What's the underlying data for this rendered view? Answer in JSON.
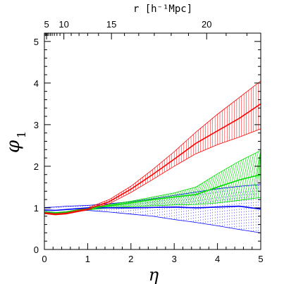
{
  "chart_data": {
    "type": "line",
    "xlabel": "η",
    "ylabel": "φ",
    "ylabel_subscript": "1",
    "top_axis_label": "r [h⁻¹Mpc]",
    "xlim": [
      0,
      5
    ],
    "ylim": [
      0,
      5.2
    ],
    "x_ticks": [
      0,
      1,
      2,
      3,
      4,
      5
    ],
    "y_ticks": [
      0,
      1,
      2,
      3,
      4,
      5
    ],
    "top_ticks": [
      {
        "label": "5",
        "eta": 0.05
      },
      {
        "label": "10",
        "eta": 0.45
      },
      {
        "label": "15",
        "eta": 1.55
      },
      {
        "label": "20",
        "eta": 3.75
      }
    ],
    "top_minor_ticks_eta": [
      0.02,
      0.04,
      0.07,
      0.1,
      0.14,
      0.18,
      0.23,
      0.29,
      0.36,
      0.62,
      0.8,
      1.0,
      1.25,
      1.85,
      2.18,
      2.54,
      2.93,
      3.33,
      4.2,
      4.68
    ],
    "grid": false,
    "legend": "none",
    "series": [
      {
        "color": "#0000ff",
        "x": [
          0,
          0.25,
          0.5,
          1,
          1.5,
          2,
          2.5,
          3,
          3.5,
          4,
          4.5,
          5
        ],
        "y": [
          0.95,
          0.94,
          0.96,
          1.0,
          1.0,
          1.0,
          1.01,
          1.02,
          1.0,
          1.02,
          1.04,
          0.97
        ],
        "upper": [
          1.01,
          1.02,
          1.04,
          1.06,
          1.1,
          1.15,
          1.22,
          1.3,
          1.38,
          1.46,
          1.52,
          1.56
        ],
        "lower": [
          0.9,
          0.88,
          0.9,
          0.94,
          0.9,
          0.85,
          0.8,
          0.72,
          0.65,
          0.57,
          0.48,
          0.4
        ],
        "hatch": "vertical-dotted"
      },
      {
        "color": "#00dd00",
        "x": [
          0,
          0.25,
          0.5,
          1,
          1.5,
          2,
          2.5,
          3,
          3.5,
          4,
          4.5,
          5
        ],
        "y": [
          0.89,
          0.86,
          0.88,
          0.98,
          1.05,
          1.12,
          1.2,
          1.26,
          1.32,
          1.5,
          1.67,
          1.8
        ],
        "upper": [
          0.92,
          0.89,
          0.91,
          1.0,
          1.08,
          1.16,
          1.26,
          1.36,
          1.5,
          1.82,
          2.12,
          2.38
        ],
        "lower": [
          0.86,
          0.84,
          0.86,
          0.95,
          1.0,
          1.03,
          1.05,
          1.07,
          1.08,
          1.12,
          1.18,
          1.25
        ],
        "hatch": "diagonal"
      },
      {
        "color": "#ff0000",
        "x": [
          0,
          0.25,
          0.5,
          1,
          1.5,
          2,
          2.5,
          3,
          3.5,
          4,
          4.5,
          5
        ],
        "y": [
          0.88,
          0.85,
          0.87,
          0.97,
          1.15,
          1.45,
          1.8,
          2.17,
          2.55,
          2.85,
          3.15,
          3.5
        ],
        "upper": [
          0.9,
          0.87,
          0.89,
          1.0,
          1.2,
          1.52,
          1.92,
          2.35,
          2.82,
          3.25,
          3.65,
          4.05
        ],
        "lower": [
          0.86,
          0.83,
          0.85,
          0.95,
          1.1,
          1.37,
          1.68,
          2.0,
          2.3,
          2.52,
          2.7,
          2.9
        ],
        "hatch": "vertical"
      }
    ]
  }
}
